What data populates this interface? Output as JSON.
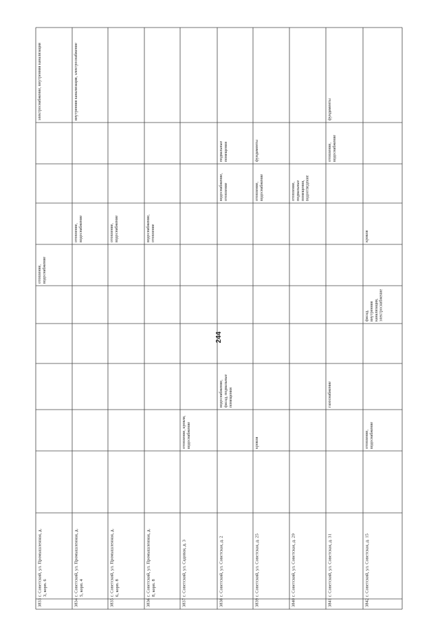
{
  "page_number": "244",
  "table": {
    "rows": [
      {
        "number": "3833",
        "address": "г. Советский, ул. Промышленная, д. 3, корп. 6",
        "cells": [
          null,
          null,
          null,
          null,
          null,
          "отопление, водоснабжение",
          null,
          null,
          null,
          "электроснабжение, внутренняя канализация"
        ]
      },
      {
        "number": "3834",
        "address": "г. Советский, ул. Промышленная, д. 5, корп. 4",
        "cells": [
          null,
          null,
          null,
          null,
          null,
          null,
          "отопление, водоснабжение",
          null,
          null,
          "внутренняя канализация, электроснабжение"
        ]
      },
      {
        "number": "3835",
        "address": "г. Советский, ул. Промышленная, д. 6, корп. 8",
        "cells": [
          null,
          null,
          null,
          null,
          null,
          null,
          "отопление, водоснабжение",
          null,
          null,
          null
        ]
      },
      {
        "number": "3836",
        "address": "г. Советский, ул. Промышленная, д. 8, корп. 8",
        "cells": [
          null,
          null,
          null,
          null,
          null,
          null,
          "водоснабжение, отопление",
          null,
          null,
          null
        ]
      },
      {
        "number": "3837",
        "address": "г. Советский, ул. Садовая, д. 3",
        "cells": [
          null,
          "отопление, кровля, водоснабжение",
          null,
          null,
          null,
          null,
          null,
          null,
          null,
          null
        ]
      },
      {
        "number": "3838",
        "address": "г. Советский, ул. Советская, д. 2",
        "cells": [
          null,
          null,
          "водоснабжение, фасад, подвальные помещения",
          null,
          null,
          null,
          null,
          "водоснабжение, отопление",
          "подвальные помещения",
          null
        ]
      },
      {
        "number": "3839",
        "address": "г. Советский, ул. Советская, д. 25",
        "cells": [
          null,
          "кровля",
          null,
          null,
          null,
          null,
          null,
          "отопление, водоснабжение",
          "фундаменты",
          null
        ]
      },
      {
        "number": "3840",
        "address": "г. Советский, ул. Советская, д. 29",
        "cells": [
          null,
          null,
          null,
          null,
          null,
          null,
          null,
          "отопление, подвальные помещения, водоотведение",
          null,
          null
        ]
      },
      {
        "number": "3841",
        "address": "г. Советский, ул. Советская, д. 31",
        "cells": [
          null,
          null,
          "газоснабжение",
          null,
          null,
          null,
          null,
          null,
          "отопление, водоснабжение",
          "фундаменты"
        ]
      },
      {
        "number": "3842",
        "address": "г. Советский, ул. Советская, д. 15",
        "cells": [
          null,
          "отопление, водоснабжение",
          null,
          null,
          "фасад, внутренняя канализация, электроснабжение",
          null,
          "кровля",
          null,
          null,
          null
        ]
      }
    ]
  }
}
